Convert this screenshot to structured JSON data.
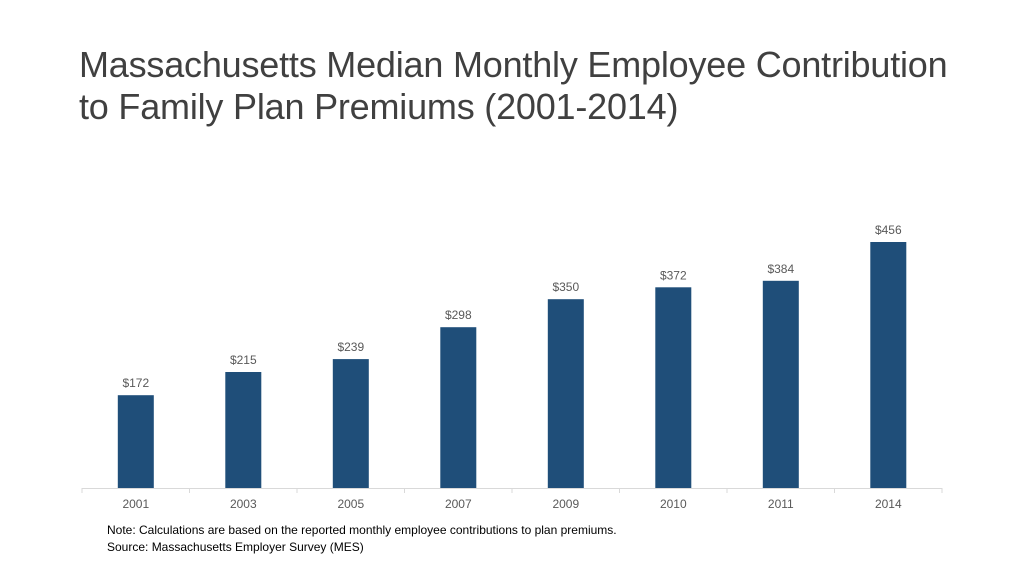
{
  "title": {
    "line1": "Massachusetts Median Monthly Employee Contribution",
    "line2": "to Family Plan Premiums (2001-2014)"
  },
  "chart_data": {
    "type": "bar",
    "categories": [
      "2001",
      "2003",
      "2005",
      "2007",
      "2009",
      "2010",
      "2011",
      "2014"
    ],
    "values": [
      172,
      215,
      239,
      298,
      350,
      372,
      384,
      456
    ],
    "data_labels": [
      "$172",
      "$215",
      "$239",
      "$298",
      "$350",
      "$372",
      "$384",
      "$456"
    ],
    "title": "Massachusetts Median Monthly Employee Contribution to Family Plan Premiums (2001-2014)",
    "xlabel": "",
    "ylabel": "",
    "ylim": [
      0,
      470
    ],
    "grid": false,
    "legend": "none",
    "bar_color": "#1f4e79"
  },
  "footer": {
    "note": "Note: Calculations are based on the reported monthly employee contributions to plan premiums.",
    "source": "Source: Massachusetts Employer Survey (MES)"
  },
  "colors": {
    "title_text": "#404040",
    "axis_line": "#d9d9d9",
    "label_text": "#595959"
  }
}
